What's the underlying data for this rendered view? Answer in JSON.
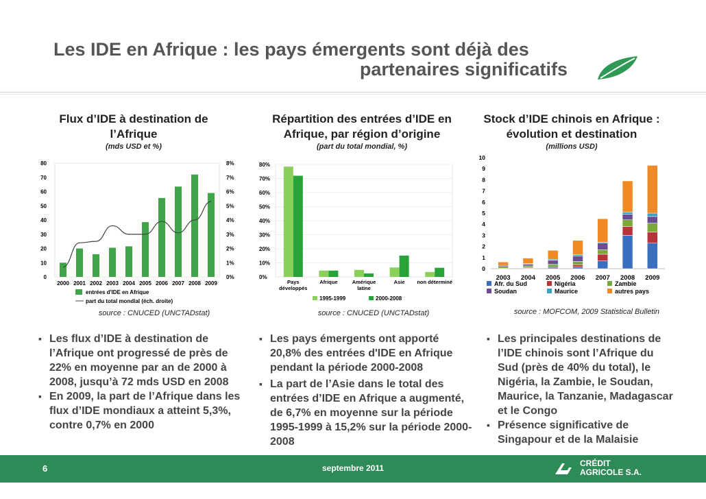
{
  "title": {
    "line1": "Les IDE en Afrique : les pays émergents sont déjà des",
    "line2": "partenaires significatifs"
  },
  "colors": {
    "green": "#3fa548",
    "light_green": "#8bd05a",
    "dark_green": "#27a33a",
    "line": "#444444"
  },
  "chart_data": [
    {
      "type": "bar",
      "title": "Flux d’IDE à destination de l’Afrique",
      "subtitle": "(mds USD et %)",
      "categories": [
        "2000",
        "2001",
        "2002",
        "2003",
        "2004",
        "2005",
        "2006",
        "2007",
        "2008",
        "2009"
      ],
      "series": [
        {
          "name": "entrées d'IDE en Afrique",
          "values": [
            10,
            20,
            16,
            20.5,
            21.5,
            38.5,
            55.5,
            63.5,
            72,
            59
          ]
        },
        {
          "name": "part du total mondial (éch. droite)",
          "axis": "right",
          "values": [
            0.7,
            2.4,
            2.5,
            3.6,
            3.0,
            3.0,
            3.9,
            3.1,
            4.0,
            5.3
          ]
        }
      ],
      "ylim": [
        0,
        80
      ],
      "yticks": [
        "0",
        "10",
        "20",
        "30",
        "40",
        "50",
        "60",
        "70",
        "80"
      ],
      "y2lim": [
        0,
        8
      ],
      "y2ticks": [
        "0%",
        "1%",
        "2%",
        "3%",
        "4%",
        "5%",
        "6%",
        "7%",
        "8%"
      ],
      "source": "source : CNUCED (UNCTADstat)"
    },
    {
      "type": "bar",
      "title": "Répartition des entrées d’IDE en Afrique, par région d’origine",
      "subtitle": "(part du total mondial, %)",
      "categories": [
        "Pays développés",
        "Afrique",
        "Amérique latine",
        "Asie",
        "non déterminé"
      ],
      "series": [
        {
          "name": "1995-1999",
          "values": [
            78.5,
            4.5,
            5.0,
            6.7,
            3.5
          ]
        },
        {
          "name": "2000-2008",
          "values": [
            72.0,
            4.5,
            2.5,
            15.2,
            6.5
          ]
        }
      ],
      "ylim": [
        0,
        80
      ],
      "yticks": [
        "0%",
        "10%",
        "20%",
        "30%",
        "40%",
        "50%",
        "60%",
        "70%",
        "80%"
      ],
      "source": "source : CNUCED (UNCTADstat)"
    },
    {
      "type": "bar",
      "stacked": true,
      "title": "Stock d’IDE chinois en Afrique : évolution et destination",
      "subtitle": "(millions USD)",
      "categories": [
        "2003",
        "2004",
        "2005",
        "2006",
        "2007",
        "2008",
        "2009"
      ],
      "series": [
        {
          "name": "Afr. du Sud",
          "color": "#3a6fbf",
          "values": [
            0.0,
            0.05,
            0.1,
            0.15,
            0.7,
            3.0,
            2.3
          ]
        },
        {
          "name": "Nigéria",
          "color": "#b8343a",
          "values": [
            0.05,
            0.05,
            0.1,
            0.2,
            0.6,
            0.8,
            1.0
          ]
        },
        {
          "name": "Zambie",
          "color": "#7aa83a",
          "values": [
            0.15,
            0.15,
            0.2,
            0.3,
            0.4,
            0.6,
            0.8
          ]
        },
        {
          "name": "Soudan",
          "color": "#6a4c93",
          "values": [
            0.1,
            0.15,
            0.35,
            0.5,
            0.6,
            0.5,
            0.6
          ]
        },
        {
          "name": "Maurice",
          "color": "#3aa0c0",
          "values": [
            0.0,
            0.05,
            0.1,
            0.1,
            0.1,
            0.2,
            0.3
          ]
        },
        {
          "name": "autres pays",
          "color": "#f08a24",
          "values": [
            0.3,
            0.5,
            0.8,
            1.3,
            2.1,
            2.8,
            4.3
          ]
        }
      ],
      "ylim": [
        0,
        10
      ],
      "yticks": [
        "0",
        "1",
        "2",
        "3",
        "4",
        "5",
        "6",
        "7",
        "8",
        "9",
        "10"
      ],
      "source": "source : MOFCOM, 2009 Statistical Bulletin"
    }
  ],
  "bullets": {
    "col1": [
      "Les flux d’IDE à destination de l’Afrique ont progressé de près de 22% en moyenne par an de 2000 à 2008, jusqu’à 72 mds USD en 2008",
      "En 2009, la part de l’Afrique dans les flux d’IDE mondiaux a atteint 5,3%, contre 0,7% en 2000"
    ],
    "col2": [
      "Les pays émergents ont apporté 20,8% des entrées d'IDE en Afrique pendant la période 2000-2008",
      "La part de l’Asie dans le total des entrées d’IDE en Afrique a augmenté, de 6,7% en moyenne sur la période 1995-1999 à 15,2% sur la période 2000-2008"
    ],
    "col3": [
      "Les principales destinations de l’IDE chinois sont l’Afrique du Sud (près de 40% du total), le Nigéria, la Zambie, le Soudan, Maurice, la Tanzanie, Madagascar et le Congo",
      "Présence significative de Singapour et de la Malaisie"
    ]
  },
  "footer": {
    "page": "6",
    "date": "septembre 2011",
    "brand1": "CRÉDIT",
    "brand2": "AGRICOLE S.A."
  }
}
